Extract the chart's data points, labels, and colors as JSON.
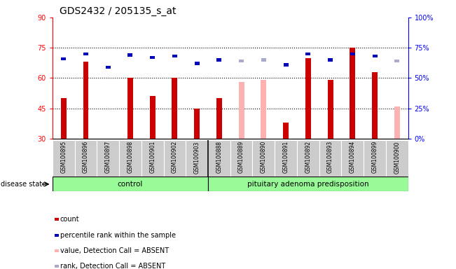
{
  "title": "GDS2432 / 205135_s_at",
  "samples": [
    "GSM100895",
    "GSM100896",
    "GSM100897",
    "GSM100898",
    "GSM100901",
    "GSM100902",
    "GSM100903",
    "GSM100888",
    "GSM100889",
    "GSM100890",
    "GSM100891",
    "GSM100892",
    "GSM100893",
    "GSM100894",
    "GSM100899",
    "GSM100900"
  ],
  "count_values": [
    50,
    68,
    30,
    60,
    51,
    60,
    45,
    50,
    null,
    null,
    38,
    70,
    59,
    75,
    63,
    null
  ],
  "count_absent": [
    null,
    null,
    null,
    null,
    null,
    null,
    null,
    null,
    58,
    59,
    null,
    null,
    null,
    null,
    null,
    46
  ],
  "rank_values": [
    66,
    70,
    59,
    69,
    67,
    68,
    62,
    65,
    null,
    null,
    61,
    70,
    65,
    70,
    68,
    null
  ],
  "rank_absent": [
    null,
    null,
    null,
    null,
    null,
    null,
    null,
    null,
    64,
    65,
    null,
    null,
    null,
    null,
    null,
    64
  ],
  "ylim_left": [
    30,
    90
  ],
  "ylim_right": [
    0,
    100
  ],
  "yticks_left": [
    30,
    45,
    60,
    75,
    90
  ],
  "yticks_right": [
    0,
    25,
    50,
    75,
    100
  ],
  "ytick_labels_right": [
    "0%",
    "25%",
    "50%",
    "75%",
    "100%"
  ],
  "bar_color_red": "#CC0000",
  "bar_color_pink": "#FFB0B0",
  "rank_color_blue": "#0000BB",
  "rank_color_lightblue": "#AAAACC",
  "control_count": 7,
  "total_count": 16,
  "group_color": "#98FB98",
  "sample_box_color": "#CCCCCC",
  "disease_state_label": "disease state",
  "legend_labels": [
    "count",
    "percentile rank within the sample",
    "value, Detection Call = ABSENT",
    "rank, Detection Call = ABSENT"
  ]
}
